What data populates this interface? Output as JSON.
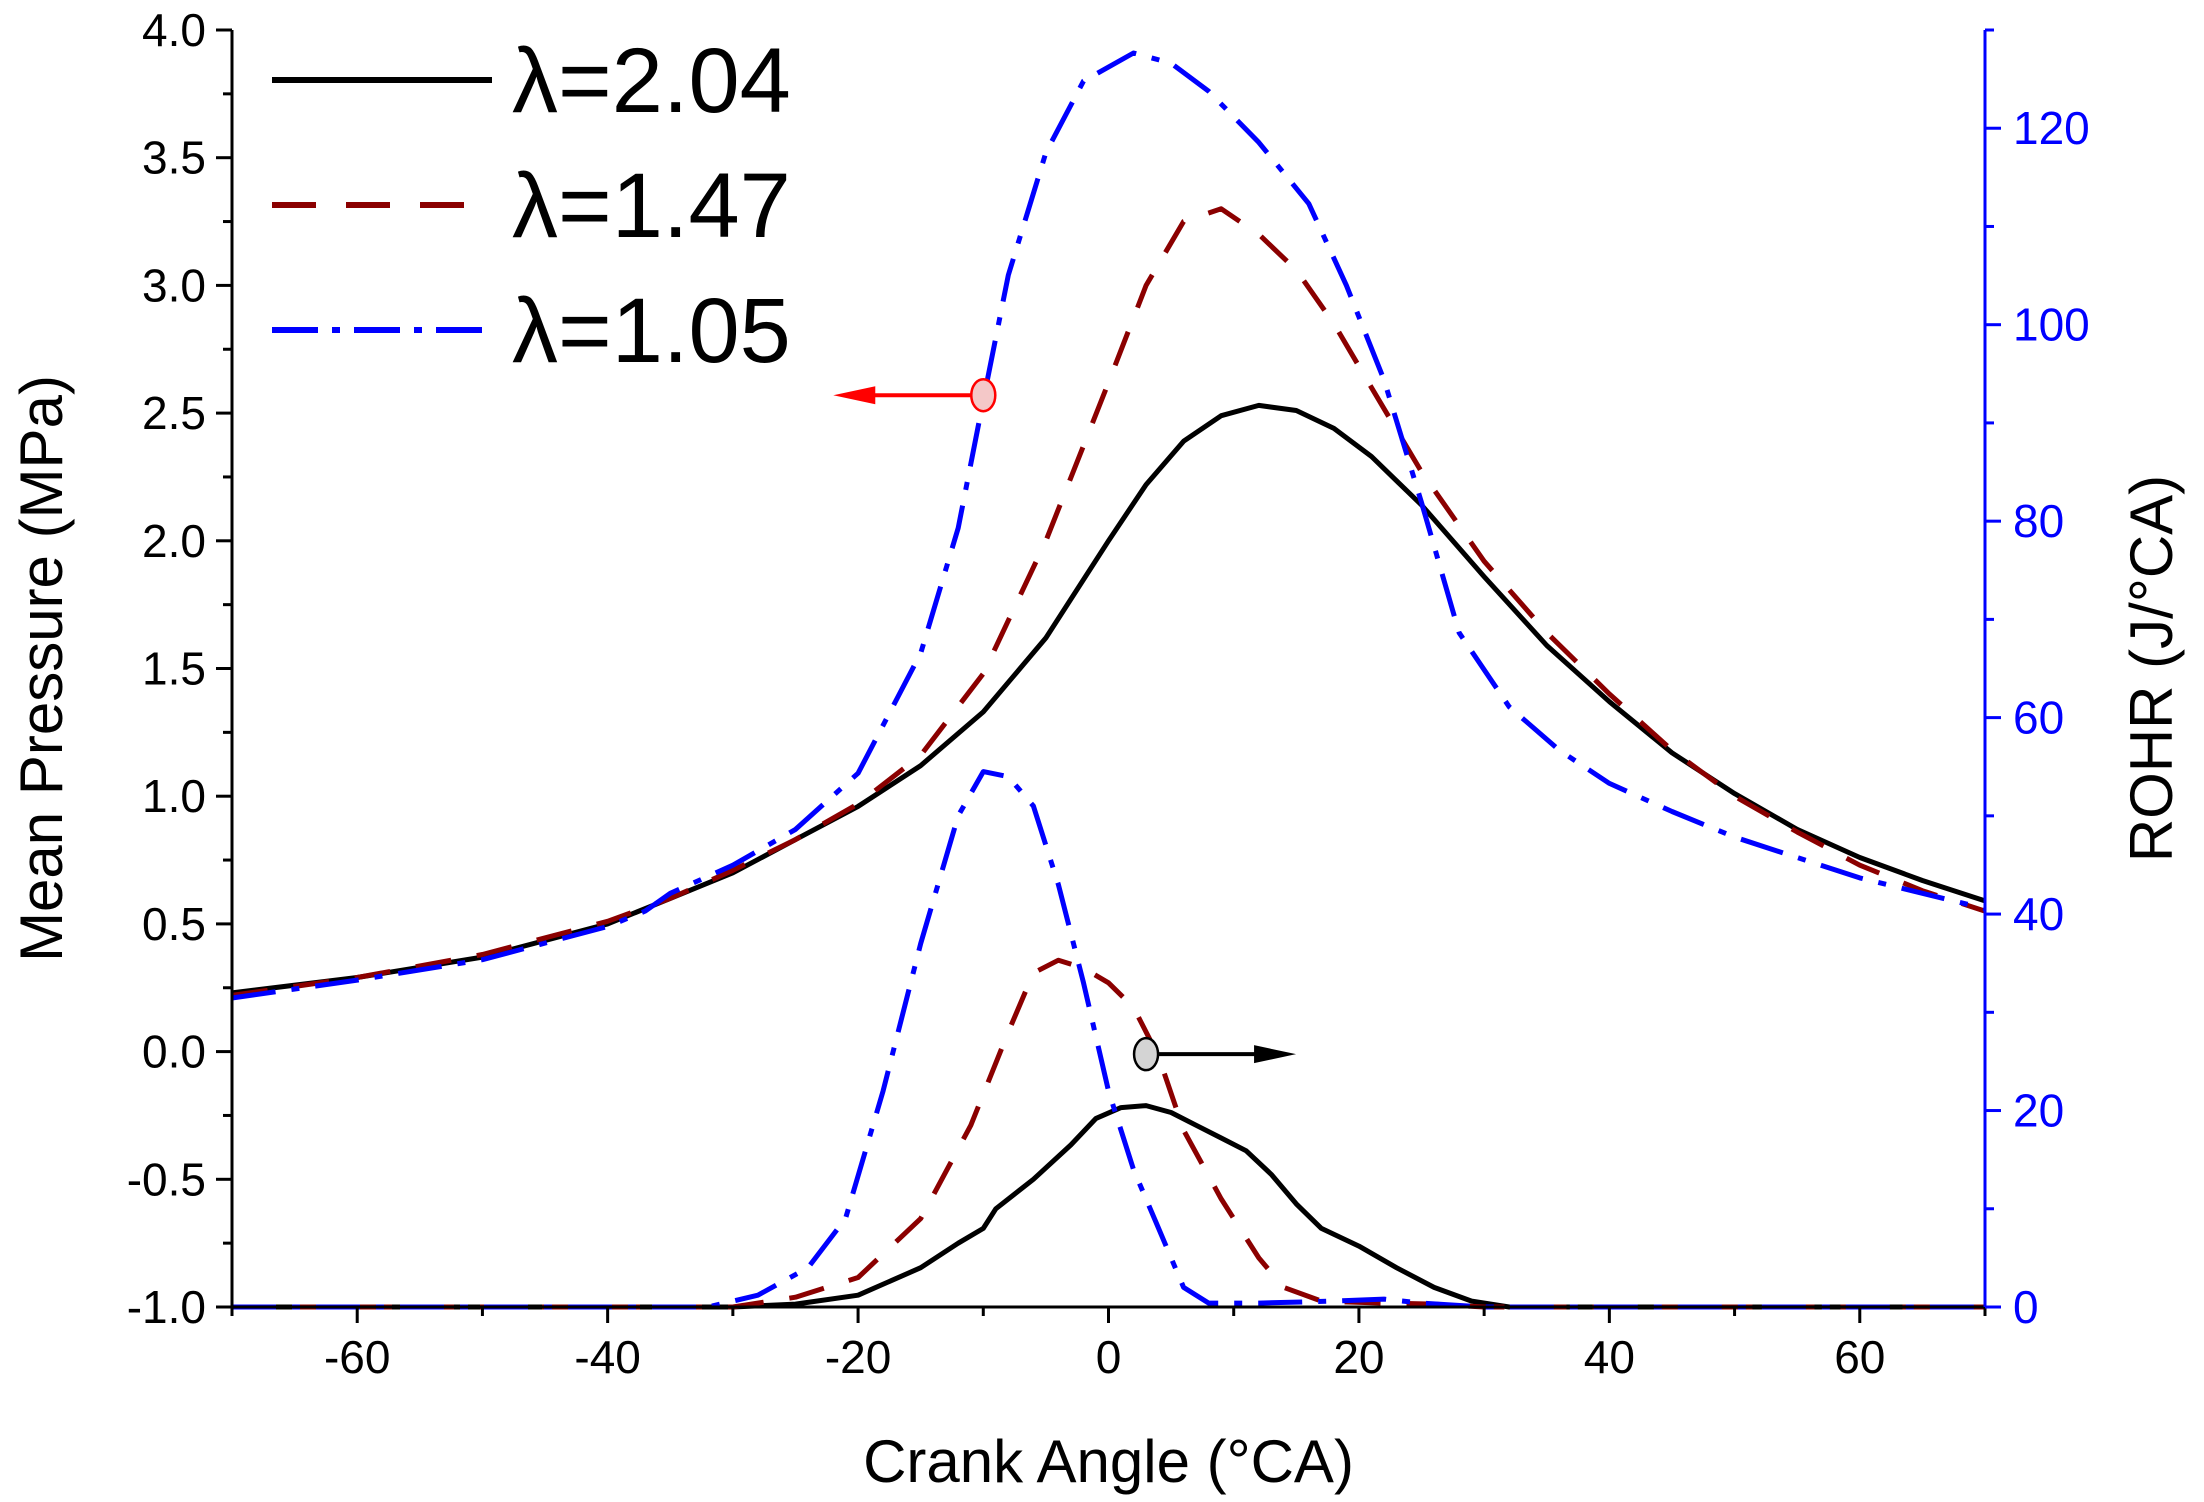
{
  "chart_data": {
    "type": "line",
    "colors": {
      "axis_left": "#000000",
      "axis_right": "#0000ff",
      "black": "#000000",
      "darkred": "#8b0000",
      "blue": "#0000ff",
      "arrow_red": "#ff0000",
      "marker_red_fill": "#f4c8c8",
      "marker_gray_fill": "#d4d4d4"
    },
    "x_axis": {
      "label": "Crank Angle (°CA)",
      "range": [
        -70,
        70
      ],
      "ticks": [
        -60,
        -40,
        -20,
        0,
        20,
        40,
        60
      ],
      "tick_labels": [
        "-60",
        "-40",
        "-20",
        "0",
        "20",
        "40",
        "60"
      ]
    },
    "y_left": {
      "label": "Mean Pressure (MPa)",
      "range": [
        -1.0,
        4.0
      ],
      "ticks": [
        -1.0,
        -0.5,
        0.0,
        0.5,
        1.0,
        1.5,
        2.0,
        2.5,
        3.0,
        3.5,
        4.0
      ],
      "tick_labels": [
        "-1.0",
        "-0.5",
        "0.0",
        "0.5",
        "1.0",
        "1.5",
        "2.0",
        "2.5",
        "3.0",
        "3.5",
        "4.0"
      ]
    },
    "y_right": {
      "label": "ROHR (J/°CA)",
      "range": [
        0,
        130
      ],
      "ticks": [
        0,
        20,
        40,
        60,
        80,
        100,
        120
      ],
      "tick_labels": [
        "0",
        "20",
        "40",
        "60",
        "80",
        "100",
        "120"
      ]
    },
    "legend": {
      "position": "top-left",
      "entries": [
        {
          "label": "λ=2.04",
          "style": "solid",
          "color": "#000000"
        },
        {
          "label": "λ=1.47",
          "style": "dash",
          "color": "#8b0000"
        },
        {
          "label": "λ=1.05",
          "style": "dashdot",
          "color": "#0000ff"
        }
      ]
    },
    "series": [
      {
        "name": "λ=2.04",
        "quantity": "pressure",
        "axis": "left",
        "style": "solid",
        "color": "#000000",
        "points": [
          [
            -70,
            0.23
          ],
          [
            -60,
            0.29
          ],
          [
            -50,
            0.37
          ],
          [
            -40,
            0.5
          ],
          [
            -35,
            0.6
          ],
          [
            -30,
            0.7
          ],
          [
            -25,
            0.83
          ],
          [
            -20,
            0.96
          ],
          [
            -15,
            1.12
          ],
          [
            -10,
            1.33
          ],
          [
            -5,
            1.62
          ],
          [
            0,
            2.0
          ],
          [
            3,
            2.22
          ],
          [
            6,
            2.39
          ],
          [
            9,
            2.49
          ],
          [
            12,
            2.53
          ],
          [
            15,
            2.51
          ],
          [
            18,
            2.44
          ],
          [
            21,
            2.33
          ],
          [
            25,
            2.14
          ],
          [
            30,
            1.86
          ],
          [
            35,
            1.59
          ],
          [
            40,
            1.37
          ],
          [
            45,
            1.17
          ],
          [
            50,
            1.01
          ],
          [
            55,
            0.87
          ],
          [
            60,
            0.76
          ],
          [
            65,
            0.67
          ],
          [
            70,
            0.59
          ]
        ]
      },
      {
        "name": "λ=1.47",
        "quantity": "pressure",
        "axis": "left",
        "style": "dash",
        "color": "#8b0000",
        "points": [
          [
            -70,
            0.22
          ],
          [
            -60,
            0.29
          ],
          [
            -50,
            0.38
          ],
          [
            -40,
            0.51
          ],
          [
            -35,
            0.6
          ],
          [
            -30,
            0.71
          ],
          [
            -25,
            0.83
          ],
          [
            -20,
            0.97
          ],
          [
            -15,
            1.16
          ],
          [
            -10,
            1.48
          ],
          [
            -5,
            2.0
          ],
          [
            0,
            2.62
          ],
          [
            3,
            3.0
          ],
          [
            6,
            3.25
          ],
          [
            9,
            3.3
          ],
          [
            12,
            3.2
          ],
          [
            15,
            3.06
          ],
          [
            18,
            2.85
          ],
          [
            21,
            2.6
          ],
          [
            25,
            2.27
          ],
          [
            30,
            1.92
          ],
          [
            35,
            1.64
          ],
          [
            40,
            1.4
          ],
          [
            45,
            1.18
          ],
          [
            50,
            1.0
          ],
          [
            55,
            0.86
          ],
          [
            60,
            0.73
          ],
          [
            65,
            0.63
          ],
          [
            70,
            0.55
          ]
        ]
      },
      {
        "name": "λ=1.05",
        "quantity": "pressure",
        "axis": "left",
        "style": "dashdot",
        "color": "#0000ff",
        "points": [
          [
            -70,
            0.21
          ],
          [
            -60,
            0.28
          ],
          [
            -50,
            0.36
          ],
          [
            -40,
            0.49
          ],
          [
            -37,
            0.55
          ],
          [
            -35,
            0.62
          ],
          [
            -30,
            0.73
          ],
          [
            -25,
            0.87
          ],
          [
            -20,
            1.09
          ],
          [
            -15,
            1.56
          ],
          [
            -12,
            2.05
          ],
          [
            -10,
            2.55
          ],
          [
            -8,
            3.04
          ],
          [
            -5,
            3.52
          ],
          [
            -2,
            3.8
          ],
          [
            2,
            3.91
          ],
          [
            5,
            3.87
          ],
          [
            8,
            3.76
          ],
          [
            12,
            3.56
          ],
          [
            16,
            3.32
          ],
          [
            19,
            3.0
          ],
          [
            22,
            2.63
          ],
          [
            25,
            2.15
          ],
          [
            28,
            1.64
          ],
          [
            32,
            1.35
          ],
          [
            36,
            1.18
          ],
          [
            40,
            1.05
          ],
          [
            45,
            0.94
          ],
          [
            50,
            0.84
          ],
          [
            55,
            0.76
          ],
          [
            60,
            0.68
          ],
          [
            65,
            0.62
          ],
          [
            70,
            0.56
          ]
        ]
      },
      {
        "name": "λ=2.04",
        "quantity": "rohr",
        "axis": "right",
        "style": "solid",
        "color": "#000000",
        "points": [
          [
            -70,
            0
          ],
          [
            -30,
            0
          ],
          [
            -25,
            0.3
          ],
          [
            -20,
            1.2
          ],
          [
            -15,
            4
          ],
          [
            -12,
            6.5
          ],
          [
            -10,
            8
          ],
          [
            -9,
            10
          ],
          [
            -6,
            13
          ],
          [
            -3,
            16.5
          ],
          [
            -1,
            19.2
          ],
          [
            1,
            20.3
          ],
          [
            3,
            20.5
          ],
          [
            5,
            19.8
          ],
          [
            7,
            18.5
          ],
          [
            9,
            17.2
          ],
          [
            11,
            15.9
          ],
          [
            13,
            13.5
          ],
          [
            15,
            10.5
          ],
          [
            17,
            8
          ],
          [
            20,
            6.2
          ],
          [
            23,
            4
          ],
          [
            26,
            2
          ],
          [
            29,
            0.6
          ],
          [
            32,
            0
          ],
          [
            70,
            0
          ]
        ]
      },
      {
        "name": "λ=1.47",
        "quantity": "rohr",
        "axis": "right",
        "style": "dash",
        "color": "#8b0000",
        "points": [
          [
            -70,
            0
          ],
          [
            -30,
            0
          ],
          [
            -25,
            1
          ],
          [
            -20,
            3
          ],
          [
            -15,
            9
          ],
          [
            -11,
            18.5
          ],
          [
            -8,
            28
          ],
          [
            -6,
            34
          ],
          [
            -4,
            35.3
          ],
          [
            -2,
            34.5
          ],
          [
            0,
            33
          ],
          [
            2,
            30.5
          ],
          [
            4,
            25.5
          ],
          [
            6,
            18
          ],
          [
            9,
            11
          ],
          [
            12,
            5
          ],
          [
            14,
            2
          ],
          [
            17,
            0.6
          ],
          [
            22,
            0.4
          ],
          [
            26,
            0.3
          ],
          [
            30,
            0
          ],
          [
            70,
            0
          ]
        ]
      },
      {
        "name": "λ=1.05",
        "quantity": "rohr",
        "axis": "right",
        "style": "dashdot",
        "color": "#0000ff",
        "points": [
          [
            -70,
            0
          ],
          [
            -32,
            0
          ],
          [
            -28,
            1.2
          ],
          [
            -24,
            4
          ],
          [
            -21,
            9
          ],
          [
            -18,
            22
          ],
          [
            -15,
            37
          ],
          [
            -12,
            50
          ],
          [
            -10,
            54.5
          ],
          [
            -8,
            54
          ],
          [
            -6,
            51
          ],
          [
            -4,
            43
          ],
          [
            -2,
            33
          ],
          [
            0,
            22
          ],
          [
            2,
            14
          ],
          [
            4,
            8
          ],
          [
            6,
            2
          ],
          [
            8,
            0.4
          ],
          [
            12,
            0.4
          ],
          [
            18,
            0.6
          ],
          [
            22,
            0.8
          ],
          [
            25,
            0.4
          ],
          [
            30,
            0
          ],
          [
            70,
            0
          ]
        ]
      }
    ],
    "annotations": [
      {
        "type": "arrow",
        "direction": "left",
        "color": "#ff0000",
        "points_to": "left-axis",
        "anchor": {
          "x": -10,
          "y": 2.57
        }
      },
      {
        "type": "arrow",
        "direction": "right",
        "color": "#000000",
        "points_to": "right-axis",
        "anchor": {
          "x": 3,
          "y": -0.01
        }
      }
    ]
  }
}
